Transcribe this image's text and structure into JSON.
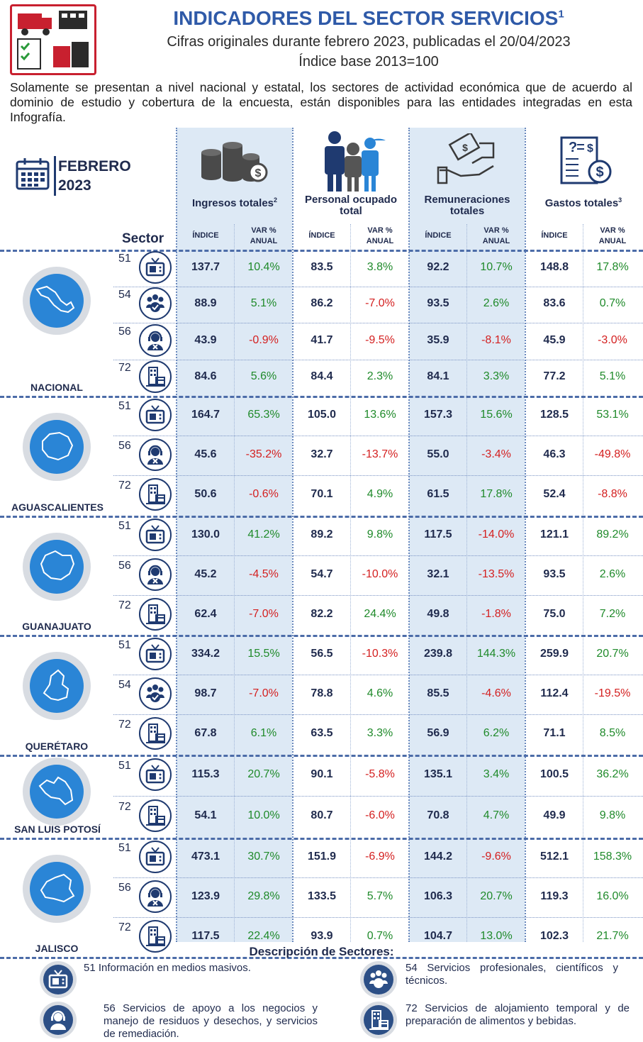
{
  "header": {
    "title": "INDICADORES DEL SECTOR SERVICIOS",
    "title_sup": "1",
    "subtitle": "Cifras originales durante febrero 2023, publicadas el 20/04/2023",
    "base": "Índice base 2013=100",
    "intro": "Solamente se presentan a nivel nacional y estatal, los sectores de actividad económica que de acuerdo al dominio de estudio y cobertura de la encuesta, están disponibles para las entidades integradas en esta Infografía."
  },
  "period": {
    "month": "FEBRERO",
    "year": "2023"
  },
  "categories": [
    {
      "label": "Ingresos totales",
      "sup": "2",
      "icon": "coins-icon"
    },
    {
      "label": "Personal ocupado total",
      "sup": "",
      "icon": "staff-icon"
    },
    {
      "label": "Remuneraciones totales",
      "sup": "",
      "icon": "payment-hands-icon"
    },
    {
      "label": "Gastos totales",
      "sup": "3",
      "icon": "invoice-icon"
    }
  ],
  "table_header": {
    "sector": "Sector",
    "index": "ÍNDICE",
    "var_line1": "VAR %",
    "var_line2": "ANUAL"
  },
  "states": [
    {
      "name": "NACIONAL",
      "rows": [
        {
          "code": "51",
          "icon": "tv-icon",
          "vals": [
            "137.7",
            "10.4%",
            "83.5",
            "3.8%",
            "92.2",
            "10.7%",
            "148.8",
            "17.8%"
          ]
        },
        {
          "code": "54",
          "icon": "people-icon",
          "vals": [
            "88.9",
            "5.1%",
            "86.2",
            "-7.0%",
            "93.5",
            "2.6%",
            "83.6",
            "0.7%"
          ]
        },
        {
          "code": "56",
          "icon": "support-agent-icon",
          "vals": [
            "43.9",
            "-0.9%",
            "41.7",
            "-9.5%",
            "35.9",
            "-8.1%",
            "45.9",
            "-3.0%"
          ]
        },
        {
          "code": "72",
          "icon": "hotel-icon",
          "vals": [
            "84.6",
            "5.6%",
            "84.4",
            "2.3%",
            "84.1",
            "3.3%",
            "77.2",
            "5.1%"
          ]
        }
      ]
    },
    {
      "name": "AGUASCALIENTES",
      "rows": [
        {
          "code": "51",
          "icon": "tv-icon",
          "vals": [
            "164.7",
            "65.3%",
            "105.0",
            "13.6%",
            "157.3",
            "15.6%",
            "128.5",
            "53.1%"
          ]
        },
        {
          "code": "56",
          "icon": "support-agent-icon",
          "vals": [
            "45.6",
            "-35.2%",
            "32.7",
            "-13.7%",
            "55.0",
            "-3.4%",
            "46.3",
            "-49.8%"
          ]
        },
        {
          "code": "72",
          "icon": "hotel-icon",
          "vals": [
            "50.6",
            "-0.6%",
            "70.1",
            "4.9%",
            "61.5",
            "17.8%",
            "52.4",
            "-8.8%"
          ]
        }
      ]
    },
    {
      "name": "GUANAJUATO",
      "rows": [
        {
          "code": "51",
          "icon": "tv-icon",
          "vals": [
            "130.0",
            "41.2%",
            "89.2",
            "9.8%",
            "117.5",
            "-14.0%",
            "121.1",
            "89.2%"
          ]
        },
        {
          "code": "56",
          "icon": "support-agent-icon",
          "vals": [
            "45.2",
            "-4.5%",
            "54.7",
            "-10.0%",
            "32.1",
            "-13.5%",
            "93.5",
            "2.6%"
          ]
        },
        {
          "code": "72",
          "icon": "hotel-icon",
          "vals": [
            "62.4",
            "-7.0%",
            "82.2",
            "24.4%",
            "49.8",
            "-1.8%",
            "75.0",
            "7.2%"
          ]
        }
      ]
    },
    {
      "name": "QUERÉTARO",
      "rows": [
        {
          "code": "51",
          "icon": "tv-icon",
          "vals": [
            "334.2",
            "15.5%",
            "56.5",
            "-10.3%",
            "239.8",
            "144.3%",
            "259.9",
            "20.7%"
          ]
        },
        {
          "code": "54",
          "icon": "people-icon",
          "vals": [
            "98.7",
            "-7.0%",
            "78.8",
            "4.6%",
            "85.5",
            "-4.6%",
            "112.4",
            "-19.5%"
          ]
        },
        {
          "code": "72",
          "icon": "hotel-icon",
          "vals": [
            "67.8",
            "6.1%",
            "63.5",
            "3.3%",
            "56.9",
            "6.2%",
            "71.1",
            "8.5%"
          ]
        }
      ]
    },
    {
      "name": "SAN LUIS POTOSÍ",
      "rows": [
        {
          "code": "51",
          "icon": "tv-icon",
          "vals": [
            "115.3",
            "20.7%",
            "90.1",
            "-5.8%",
            "135.1",
            "3.4%",
            "100.5",
            "36.2%"
          ]
        },
        {
          "code": "72",
          "icon": "hotel-icon",
          "vals": [
            "54.1",
            "10.0%",
            "80.7",
            "-6.0%",
            "70.8",
            "4.7%",
            "49.9",
            "9.8%"
          ]
        }
      ]
    },
    {
      "name": "JALISCO",
      "rows": [
        {
          "code": "51",
          "icon": "tv-icon",
          "vals": [
            "473.1",
            "30.7%",
            "151.9",
            "-6.9%",
            "144.2",
            "-9.6%",
            "512.1",
            "158.3%"
          ]
        },
        {
          "code": "56",
          "icon": "support-agent-icon",
          "vals": [
            "123.9",
            "29.8%",
            "133.5",
            "5.7%",
            "106.3",
            "20.7%",
            "119.3",
            "16.0%"
          ]
        },
        {
          "code": "72",
          "icon": "hotel-icon",
          "vals": [
            "117.5",
            "22.4%",
            "93.9",
            "0.7%",
            "104.7",
            "13.0%",
            "102.3",
            "21.7%"
          ]
        }
      ]
    }
  ],
  "descriptions": {
    "title": "Descripción de Sectores:",
    "items": [
      {
        "text": "51 Información en medios masivos.",
        "icon": "tv-icon"
      },
      {
        "text": "54 Servicios profesionales, científicos y técnicos.",
        "icon": "people-icon"
      },
      {
        "text": "56 Servicios de apoyo a los negocios y manejo de residuos y desechos, y servicios de remediación.",
        "icon": "support-agent-icon"
      },
      {
        "text": "72 Servicios de alojamiento temporal y de preparación de alimentos y bebidas.",
        "icon": "hotel-icon"
      }
    ]
  },
  "colors": {
    "title": "#2f5aa8",
    "positive": "#1f8a2a",
    "negative": "#d42020",
    "column_bg": "#dde9f5",
    "circle": "#2a85d6"
  }
}
